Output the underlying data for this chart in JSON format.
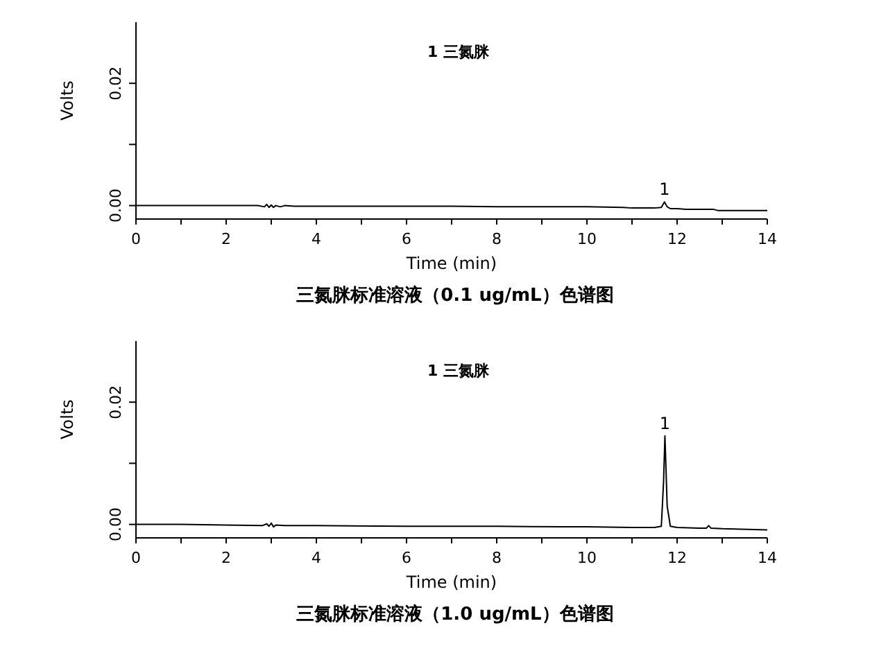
{
  "chart_data": [
    {
      "type": "line",
      "title": "三氮脒标准溶液（0.1 ug/mL）色谱图",
      "xlabel": "Time (min)",
      "ylabel": "Volts",
      "annotations": [
        "1 三氮脒",
        {
          "text": "1",
          "x": 11.72,
          "y": 0.0006
        }
      ],
      "xlim": [
        0,
        14
      ],
      "xticks": [
        0,
        {
          "value": 1,
          "label": null
        },
        2,
        {
          "value": 3,
          "label": null
        },
        4,
        {
          "value": 5,
          "label": null
        },
        6,
        {
          "value": 7,
          "label": null
        },
        8,
        {
          "value": 9,
          "label": null
        },
        10,
        {
          "value": 11,
          "label": null
        },
        12,
        {
          "value": 13,
          "label": null
        },
        14
      ],
      "ylim": [
        -0.0022,
        0.03
      ],
      "yticks": [
        {
          "value": 0,
          "label": "0.00"
        },
        {
          "value": 0.01,
          "label": null
        },
        {
          "value": 0.02,
          "label": "0.02"
        }
      ],
      "grid": false,
      "legend": false,
      "marker": "none",
      "line_style": "solid",
      "series": [
        {
          "color": "#000000",
          "x": [
            0,
            1,
            2,
            2.7,
            2.85,
            2.9,
            2.95,
            3.0,
            3.05,
            3.1,
            3.2,
            3.3,
            3.5,
            4,
            5,
            6,
            7,
            8,
            9,
            10,
            10.8,
            11,
            11.5,
            11.65,
            11.72,
            11.78,
            11.85,
            12,
            12.2,
            12.8,
            12.9,
            13,
            14
          ],
          "values": [
            0,
            0,
            0,
            0,
            -0.0002,
            0.0002,
            -0.0003,
            0.0001,
            -0.0003,
            0,
            -0.0002,
            0,
            -0.0001,
            -0.0001,
            -0.0001,
            -0.0001,
            -0.0001,
            -0.0002,
            -0.0002,
            -0.0002,
            -0.0003,
            -0.0004,
            -0.0004,
            -0.0003,
            0.0006,
            -0.0002,
            -0.0005,
            -0.0005,
            -0.0006,
            -0.0006,
            -0.0008,
            -0.0008,
            -0.0008
          ]
        }
      ]
    },
    {
      "type": "line",
      "title": "三氮脒标准溶液（1.0 ug/mL）色谱图",
      "xlabel": "Time (min)",
      "ylabel": "Volts",
      "annotations": [
        "1 三氮脒",
        {
          "text": "1",
          "x": 11.73,
          "y": 0.0145
        }
      ],
      "xlim": [
        0,
        14
      ],
      "xticks": [
        0,
        {
          "value": 1,
          "label": null
        },
        2,
        {
          "value": 3,
          "label": null
        },
        4,
        {
          "value": 5,
          "label": null
        },
        6,
        {
          "value": 7,
          "label": null
        },
        8,
        {
          "value": 9,
          "label": null
        },
        10,
        {
          "value": 11,
          "label": null
        },
        12,
        {
          "value": 13,
          "label": null
        },
        14
      ],
      "ylim": [
        -0.0022,
        0.03
      ],
      "yticks": [
        {
          "value": 0,
          "label": "0.00"
        },
        {
          "value": 0.01,
          "label": null
        },
        {
          "value": 0.02,
          "label": "0.02"
        }
      ],
      "grid": false,
      "legend": false,
      "marker": "none",
      "line_style": "solid",
      "series": [
        {
          "color": "#000000",
          "x": [
            0,
            1,
            2,
            2.8,
            2.9,
            2.95,
            3.0,
            3.05,
            3.1,
            3.3,
            4,
            6,
            8,
            9.5,
            10,
            11,
            11.5,
            11.65,
            11.7,
            11.73,
            11.78,
            11.85,
            12,
            12.5,
            12.65,
            12.7,
            12.75,
            13,
            14
          ],
          "values": [
            0,
            0,
            -0.0001,
            -0.0002,
            0.0001,
            -0.0003,
            0.0002,
            -0.0004,
            -0.0001,
            -0.0002,
            -0.0002,
            -0.0003,
            -0.0003,
            -0.0004,
            -0.0004,
            -0.0005,
            -0.0005,
            -0.0003,
            0.007,
            0.0145,
            0.003,
            -0.0003,
            -0.0005,
            -0.0006,
            -0.0006,
            -0.0002,
            -0.0006,
            -0.0007,
            -0.0009
          ]
        }
      ]
    }
  ]
}
